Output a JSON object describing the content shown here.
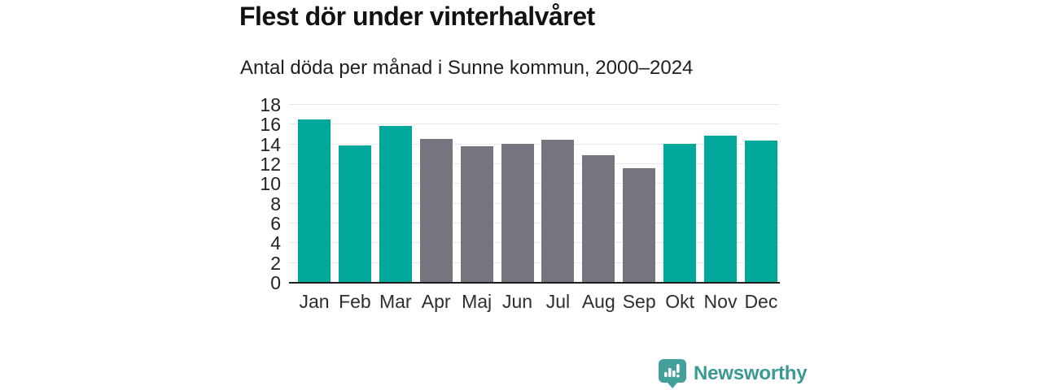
{
  "header": {
    "title": "Flest dör under vinterhalvåret",
    "subtitle": "Antal döda per månad i Sunne kommun, 2000–2024"
  },
  "chart_data": {
    "type": "bar",
    "title": "Flest dör under vinterhalvåret",
    "subtitle": "Antal döda per månad i Sunne kommun, 2000–2024",
    "categories": [
      "Jan",
      "Feb",
      "Mar",
      "Apr",
      "Maj",
      "Jun",
      "Jul",
      "Aug",
      "Sep",
      "Okt",
      "Nov",
      "Dec"
    ],
    "values": [
      16.4,
      13.8,
      15.8,
      14.5,
      13.7,
      14.0,
      14.4,
      12.8,
      11.5,
      14.0,
      14.8,
      14.3
    ],
    "highlighted_categories": [
      "Jan",
      "Feb",
      "Mar",
      "Okt",
      "Nov",
      "Dec"
    ],
    "xlabel": "",
    "ylabel": "",
    "ylim": [
      0,
      18
    ],
    "yticks": [
      0,
      2,
      4,
      6,
      8,
      10,
      12,
      14,
      16,
      18
    ],
    "grid": "horizontal",
    "legend_position": "none",
    "colors": {
      "highlight_bar": "#00a79b",
      "default_bar": "#76757f",
      "gridline": "#e8e8e8",
      "axis_line": "#1f1f1f",
      "tick_label": "#222222"
    }
  },
  "footer": {
    "brand": "Newsworthy",
    "brand_color": "#3a9a93",
    "logo_icon": "newsworthy-bar-chart-bubble-icon"
  }
}
